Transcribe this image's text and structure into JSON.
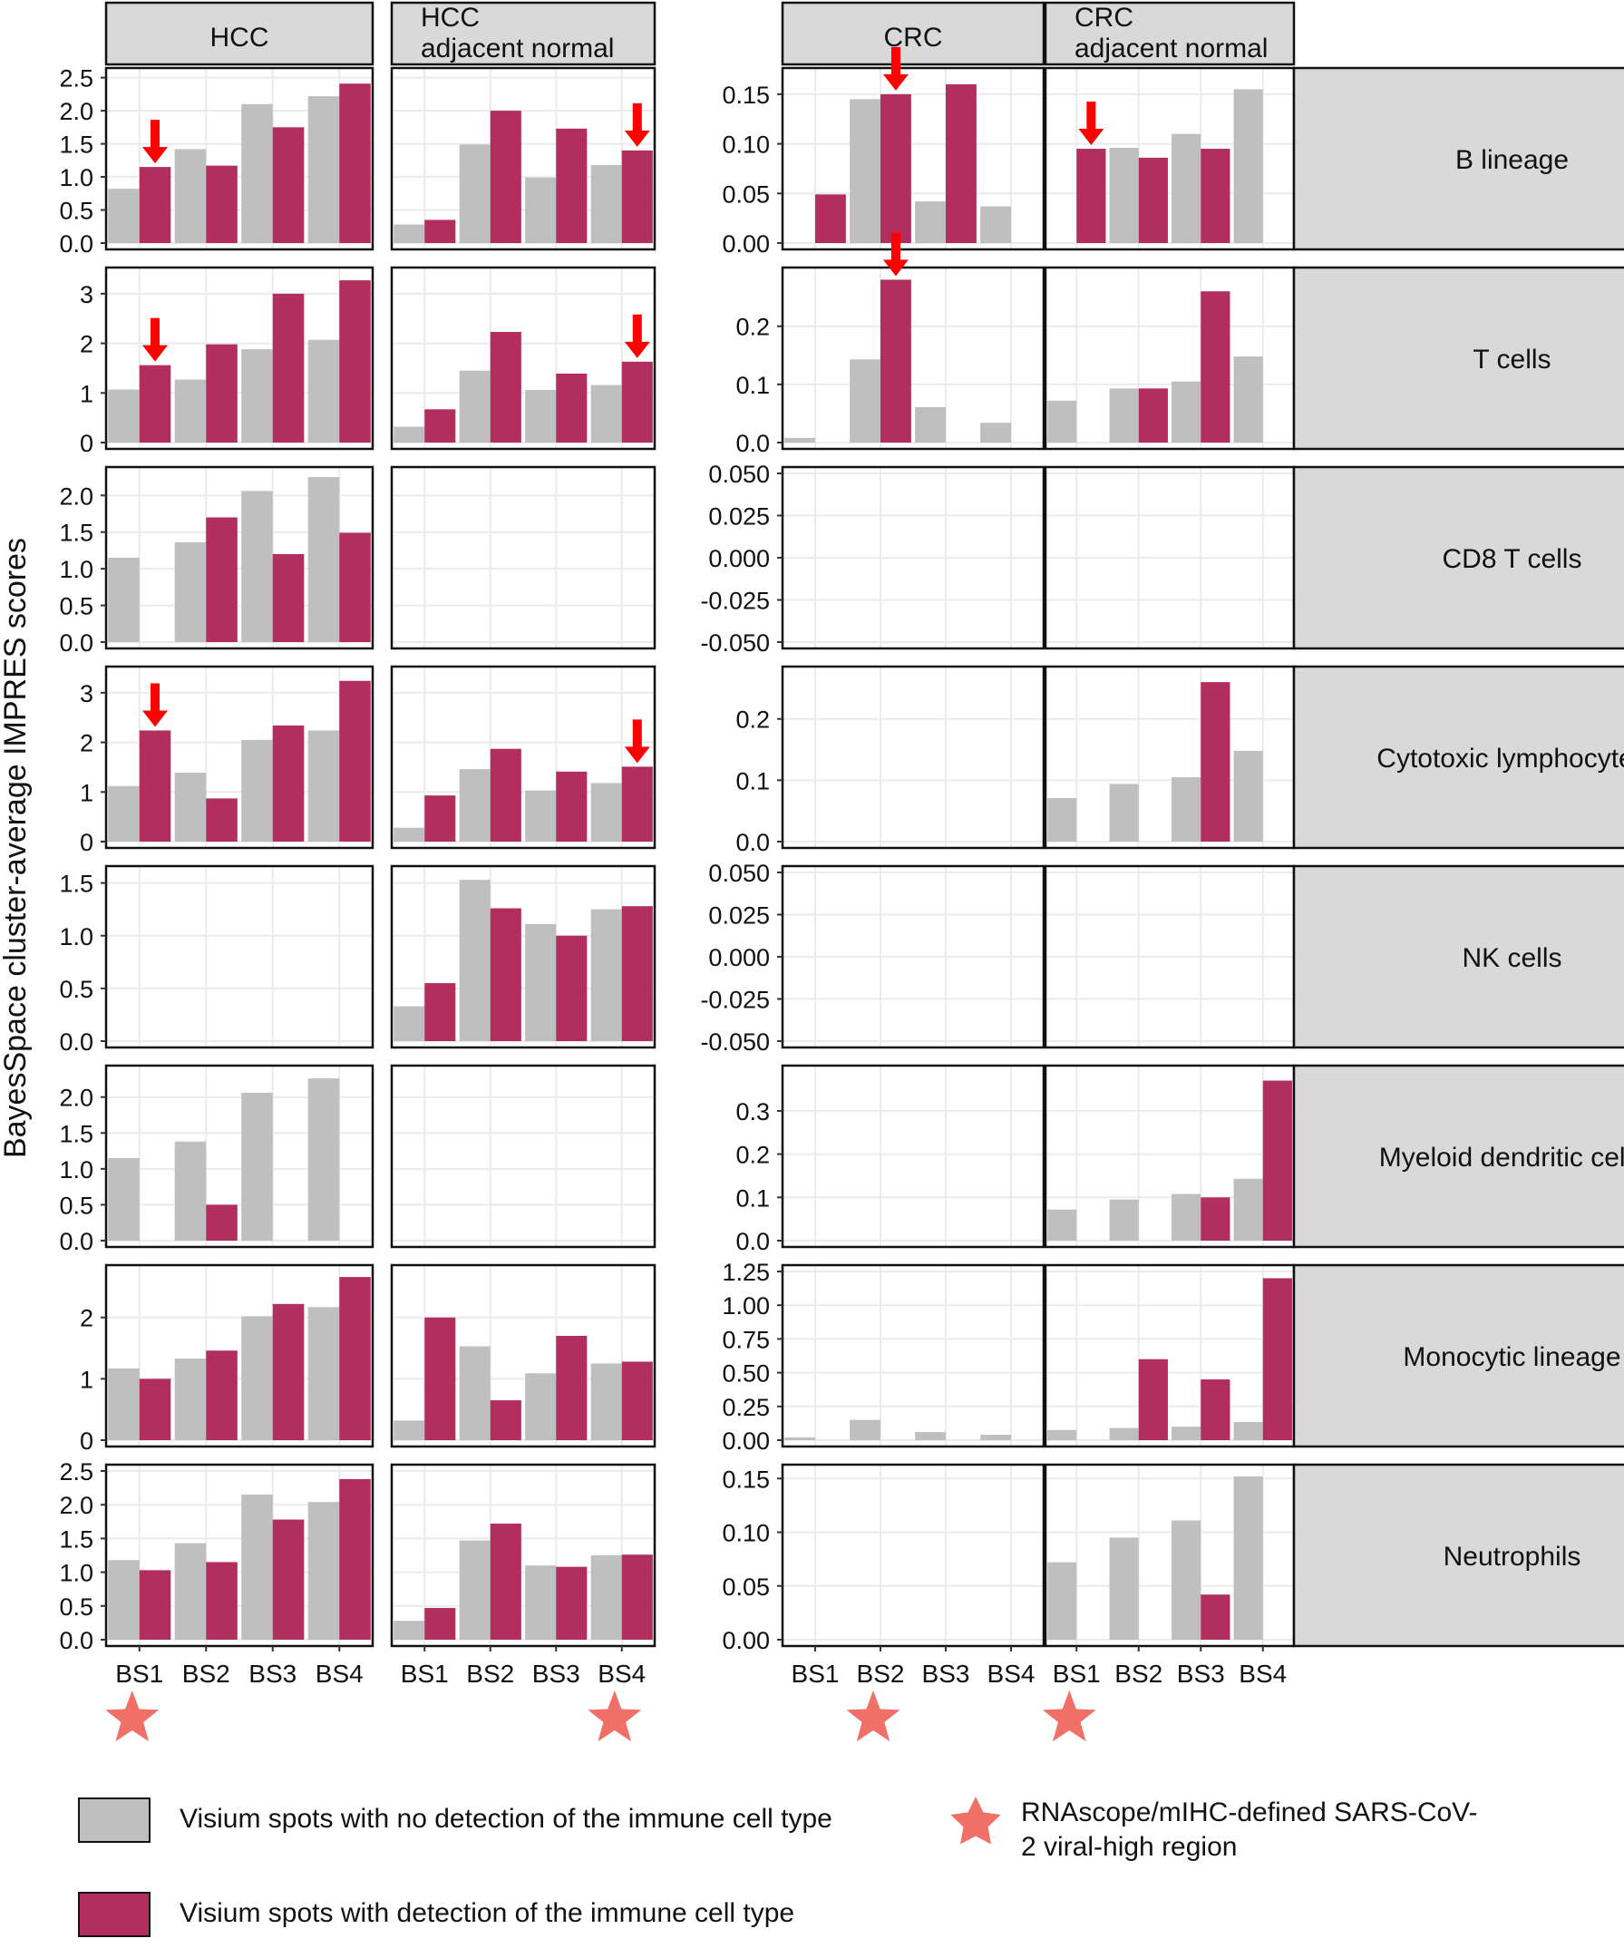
{
  "colors": {
    "no_detection": "#bfbfbf",
    "detection": "#b12e5e",
    "strip": "#d9d9d9",
    "grid": "#ebebeb",
    "arrow": "#ff0000",
    "star": "#f07067"
  },
  "chart_data": {
    "type": "bar",
    "ylabel": "BayesSpace cluster-average IMPRES scores",
    "categories": [
      "BS1",
      "BS2",
      "BS3",
      "BS4"
    ],
    "series_names": [
      "Visium spots with no detection of the immune cell type",
      "Visium spots with detection of the immune cell type"
    ],
    "columns": [
      {
        "key": "hcc",
        "label": [
          "HCC"
        ]
      },
      {
        "key": "hcc_adj",
        "label": [
          "HCC",
          "adjacent normal"
        ]
      },
      {
        "key": "crc",
        "label": [
          "CRC"
        ]
      },
      {
        "key": "crc_adj",
        "label": [
          "CRC",
          "adjacent normal"
        ]
      }
    ],
    "rows": [
      {
        "label": "B lineage",
        "axes": {
          "hcc": {
            "ylim": [
              0,
              2.55
            ],
            "ticks": [
              "0.0",
              "0.5",
              "1.0",
              "1.5",
              "2.0",
              "2.5"
            ]
          },
          "crc": {
            "ylim": [
              0,
              0.17
            ],
            "ticks": [
              "0.00",
              "0.05",
              "0.10",
              "0.15"
            ]
          }
        },
        "panels": {
          "hcc": {
            "no_detection": [
              0.82,
              1.42,
              2.1,
              2.22
            ],
            "detection": [
              1.15,
              1.17,
              1.75,
              2.41
            ]
          },
          "hcc_adj": {
            "no_detection": [
              0.28,
              1.49,
              0.99,
              1.18
            ],
            "detection": [
              0.35,
              2.0,
              1.73,
              1.4
            ]
          },
          "crc": {
            "no_detection": [
              null,
              0.145,
              0.042,
              0.037
            ],
            "detection": [
              0.049,
              0.15,
              0.16,
              null
            ]
          },
          "crc_adj": {
            "no_detection": [
              null,
              0.096,
              0.11,
              0.155
            ],
            "detection": [
              0.095,
              0.086,
              0.095,
              null
            ]
          }
        },
        "arrows": [
          {
            "panel": "hcc",
            "cat": 0
          },
          {
            "panel": "hcc_adj",
            "cat": 3
          },
          {
            "panel": "crc",
            "cat": 1
          },
          {
            "panel": "crc_adj",
            "cat": 0
          }
        ]
      },
      {
        "label": "T cells",
        "axes": {
          "hcc": {
            "ylim": [
              0,
              3.4
            ],
            "ticks": [
              "0",
              "1",
              "2",
              "3"
            ]
          },
          "crc": {
            "ylim": [
              0,
              0.29
            ],
            "ticks": [
              "0.0",
              "0.1",
              "0.2"
            ]
          }
        },
        "panels": {
          "hcc": {
            "no_detection": [
              1.07,
              1.27,
              1.88,
              2.07
            ],
            "detection": [
              1.56,
              1.98,
              3.0,
              3.27
            ]
          },
          "hcc_adj": {
            "no_detection": [
              0.32,
              1.45,
              1.06,
              1.16
            ],
            "detection": [
              0.67,
              2.23,
              1.39,
              1.63
            ]
          },
          "crc": {
            "no_detection": [
              0.008,
              0.143,
              0.061,
              0.034
            ],
            "detection": [
              null,
              0.28,
              null,
              null
            ]
          },
          "crc_adj": {
            "no_detection": [
              0.072,
              0.093,
              0.105,
              0.148
            ],
            "detection": [
              null,
              0.093,
              0.26,
              null
            ]
          }
        },
        "arrows": [
          {
            "panel": "hcc",
            "cat": 0
          },
          {
            "panel": "hcc_adj",
            "cat": 3
          },
          {
            "panel": "crc",
            "cat": 1
          }
        ]
      },
      {
        "label": "CD8 T cells",
        "axes": {
          "hcc": {
            "ylim": [
              0,
              2.3
            ],
            "ticks": [
              "0.0",
              "0.5",
              "1.0",
              "1.5",
              "2.0"
            ]
          },
          "crc": {
            "ylim": [
              -0.05,
              0.05
            ],
            "ticks": [
              "-0.050",
              "-0.025",
              "0.000",
              "0.025",
              "0.050"
            ]
          }
        },
        "panels": {
          "hcc": {
            "no_detection": [
              1.15,
              1.36,
              2.06,
              2.25
            ],
            "detection": [
              null,
              1.7,
              1.2,
              1.49
            ]
          },
          "hcc_adj": {
            "no_detection": [
              null,
              null,
              null,
              null
            ],
            "detection": [
              null,
              null,
              null,
              null
            ]
          },
          "crc": {
            "no_detection": [
              null,
              null,
              null,
              null
            ],
            "detection": [
              null,
              null,
              null,
              null
            ]
          },
          "crc_adj": {
            "no_detection": [
              null,
              null,
              null,
              null
            ],
            "detection": [
              null,
              null,
              null,
              null
            ]
          }
        },
        "arrows": []
      },
      {
        "label": "Cytotoxic lymphocytes",
        "axes": {
          "hcc": {
            "ylim": [
              0,
              3.4
            ],
            "ticks": [
              "0",
              "1",
              "2",
              "3"
            ]
          },
          "crc": {
            "ylim": [
              0,
              0.275
            ],
            "ticks": [
              "0.0",
              "0.1",
              "0.2"
            ]
          }
        },
        "panels": {
          "hcc": {
            "no_detection": [
              1.12,
              1.39,
              2.05,
              2.24
            ],
            "detection": [
              2.24,
              0.87,
              2.34,
              3.24
            ]
          },
          "hcc_adj": {
            "no_detection": [
              0.28,
              1.46,
              1.03,
              1.18
            ],
            "detection": [
              0.93,
              1.87,
              1.41,
              1.51
            ]
          },
          "crc": {
            "no_detection": [
              null,
              null,
              null,
              null
            ],
            "detection": [
              null,
              null,
              null,
              null
            ]
          },
          "crc_adj": {
            "no_detection": [
              0.071,
              0.094,
              0.105,
              0.148
            ],
            "detection": [
              null,
              null,
              0.26,
              null
            ]
          }
        },
        "arrows": [
          {
            "panel": "hcc",
            "cat": 0
          },
          {
            "panel": "hcc_adj",
            "cat": 3
          }
        ]
      },
      {
        "label": "NK cells",
        "axes": {
          "hcc": {
            "ylim": [
              0,
              1.6
            ],
            "ticks": [
              "0.0",
              "0.5",
              "1.0",
              "1.5"
            ]
          },
          "crc": {
            "ylim": [
              -0.05,
              0.05
            ],
            "ticks": [
              "-0.050",
              "-0.025",
              "0.000",
              "0.025",
              "0.050"
            ]
          }
        },
        "panels": {
          "hcc": {
            "no_detection": [
              null,
              null,
              null,
              null
            ],
            "detection": [
              null,
              null,
              null,
              null
            ]
          },
          "hcc_adj": {
            "no_detection": [
              0.33,
              1.53,
              1.11,
              1.25
            ],
            "detection": [
              0.55,
              1.26,
              1.0,
              1.28
            ]
          },
          "crc": {
            "no_detection": [
              null,
              null,
              null,
              null
            ],
            "detection": [
              null,
              null,
              null,
              null
            ]
          },
          "crc_adj": {
            "no_detection": [
              null,
              null,
              null,
              null
            ],
            "detection": [
              null,
              null,
              null,
              null
            ]
          }
        },
        "arrows": []
      },
      {
        "label": "Myeloid dendritic cells",
        "axes": {
          "hcc": {
            "ylim": [
              0,
              2.35
            ],
            "ticks": [
              "0.0",
              "0.5",
              "1.0",
              "1.5",
              "2.0"
            ]
          },
          "crc": {
            "ylim": [
              0,
              0.39
            ],
            "ticks": [
              "0.0",
              "0.1",
              "0.2",
              "0.3"
            ]
          }
        },
        "panels": {
          "hcc": {
            "no_detection": [
              1.15,
              1.38,
              2.06,
              2.26
            ],
            "detection": [
              null,
              0.5,
              null,
              null
            ]
          },
          "hcc_adj": {
            "no_detection": [
              null,
              null,
              null,
              null
            ],
            "detection": [
              null,
              null,
              null,
              null
            ]
          },
          "crc": {
            "no_detection": [
              null,
              null,
              null,
              null
            ],
            "detection": [
              null,
              null,
              null,
              null
            ]
          },
          "crc_adj": {
            "no_detection": [
              0.072,
              0.095,
              0.108,
              0.143
            ],
            "detection": [
              null,
              null,
              0.1,
              0.37
            ]
          }
        },
        "arrows": []
      },
      {
        "label": "Monocytic lineage",
        "axes": {
          "hcc": {
            "ylim": [
              0,
              2.75
            ],
            "ticks": [
              "0",
              "1",
              "2"
            ]
          },
          "crc": {
            "ylim": [
              0,
              1.25
            ],
            "ticks": [
              "0.00",
              "0.25",
              "0.50",
              "0.75",
              "1.00",
              "1.25"
            ]
          }
        },
        "panels": {
          "hcc": {
            "no_detection": [
              1.17,
              1.33,
              2.02,
              2.17
            ],
            "detection": [
              1.0,
              1.46,
              2.22,
              2.66
            ]
          },
          "hcc_adj": {
            "no_detection": [
              0.32,
              1.53,
              1.09,
              1.25
            ],
            "detection": [
              2.0,
              0.65,
              1.7,
              1.28
            ]
          },
          "crc": {
            "no_detection": [
              0.02,
              0.15,
              0.06,
              0.04
            ],
            "detection": [
              null,
              null,
              null,
              null
            ]
          },
          "crc_adj": {
            "no_detection": [
              0.075,
              0.09,
              0.1,
              0.135
            ],
            "detection": [
              null,
              0.6,
              0.45,
              1.2
            ]
          }
        },
        "arrows": []
      },
      {
        "label": "Neutrophils",
        "axes": {
          "hcc": {
            "ylim": [
              0,
              2.5
            ],
            "ticks": [
              "0.0",
              "0.5",
              "1.0",
              "1.5",
              "2.0",
              "2.5"
            ]
          },
          "crc": {
            "ylim": [
              0,
              0.157
            ],
            "ticks": [
              "0.00",
              "0.05",
              "0.10",
              "0.15"
            ]
          }
        },
        "panels": {
          "hcc": {
            "no_detection": [
              1.18,
              1.43,
              2.15,
              2.04
            ],
            "detection": [
              1.03,
              1.15,
              1.78,
              2.38
            ]
          },
          "hcc_adj": {
            "no_detection": [
              0.28,
              1.47,
              1.1,
              1.25
            ],
            "detection": [
              0.47,
              1.72,
              1.08,
              1.26
            ]
          },
          "crc": {
            "no_detection": [
              null,
              null,
              null,
              null
            ],
            "detection": [
              null,
              null,
              null,
              null
            ]
          },
          "crc_adj": {
            "no_detection": [
              0.072,
              0.095,
              0.111,
              0.152
            ],
            "detection": [
              null,
              null,
              0.042,
              null
            ]
          }
        },
        "arrows": []
      }
    ],
    "stars": [
      {
        "panel": "hcc",
        "cat": 0
      },
      {
        "panel": "hcc_adj",
        "cat": 3
      },
      {
        "panel": "crc",
        "cat": 1
      },
      {
        "panel": "crc_adj",
        "cat": 0
      }
    ]
  },
  "legend": {
    "no_detection_label": "Visium spots with no detection of the immune cell type",
    "detection_label": "Visium spots with detection of the immune cell type",
    "star_label_line1": "RNAscope/mIHC-defined SARS-CoV-",
    "star_label_line2": "2 viral-high region"
  }
}
